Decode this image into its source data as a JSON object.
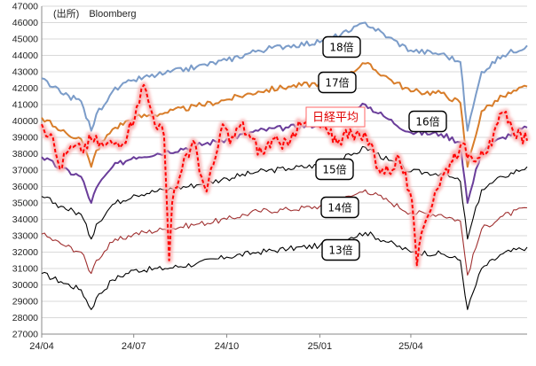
{
  "chart_data": {
    "type": "line",
    "source_note": "(出所)　Bloomberg",
    "xlim": [
      "2024-04-01",
      "2025-07-25"
    ],
    "ylim": [
      27000,
      47000
    ],
    "ytick_step": 1000,
    "y_ticks": [
      27000,
      28000,
      29000,
      30000,
      31000,
      32000,
      33000,
      34000,
      35000,
      36000,
      37000,
      38000,
      39000,
      40000,
      41000,
      42000,
      43000,
      44000,
      45000,
      46000,
      47000
    ],
    "x_ticks": [
      {
        "label": "24/04",
        "date": "2024-04-01"
      },
      {
        "label": "24/07",
        "date": "2024-07-01"
      },
      {
        "label": "24/10",
        "date": "2024-10-01"
      },
      {
        "label": "25/01",
        "date": "2025-01-01"
      },
      {
        "label": "25/04",
        "date": "2025-04-01"
      }
    ],
    "grid": "horizontal",
    "colors": {
      "line_13": "#000000",
      "line_14": "#a03030",
      "line_15": "#000000",
      "line_16": "#6a3d9a",
      "line_17": "#d87d2a",
      "line_18": "#7b9cc9",
      "nikkei": "#ff0000",
      "nikkei_glow": "#f8b8b8",
      "nikkei_label_border": "#ff6666"
    },
    "series": [
      {
        "id": "line_13",
        "name": "13倍",
        "dates": [
          "2024-04-01",
          "2024-04-20",
          "2024-05-10",
          "2024-05-20",
          "2024-05-25",
          "2024-06-10",
          "2024-07-01",
          "2024-08-01",
          "2024-09-01",
          "2024-10-01",
          "2024-11-01",
          "2024-12-01",
          "2025-01-01",
          "2025-02-01",
          "2025-02-15",
          "2025-03-10",
          "2025-04-01",
          "2025-05-01",
          "2025-05-20",
          "2025-05-27",
          "2025-06-10",
          "2025-07-01",
          "2025-07-25"
        ],
        "values": [
          30700,
          30200,
          29700,
          28500,
          29200,
          30300,
          30900,
          31000,
          31300,
          31700,
          32000,
          32200,
          32400,
          32900,
          33200,
          32600,
          32000,
          31900,
          31500,
          28500,
          31000,
          31900,
          32300
        ]
      },
      {
        "id": "line_14",
        "name": "14倍",
        "dates": [
          "2024-04-01",
          "2024-04-20",
          "2024-05-10",
          "2024-05-20",
          "2024-05-25",
          "2024-06-10",
          "2024-07-01",
          "2024-08-01",
          "2024-09-01",
          "2024-10-01",
          "2024-11-01",
          "2024-12-01",
          "2025-01-01",
          "2025-02-01",
          "2025-02-15",
          "2025-03-10",
          "2025-04-01",
          "2025-05-01",
          "2025-05-20",
          "2025-05-27",
          "2025-06-10",
          "2025-07-01",
          "2025-07-25"
        ],
        "values": [
          33100,
          32500,
          32000,
          30700,
          31500,
          32600,
          33100,
          33400,
          33700,
          34000,
          34500,
          34600,
          34800,
          35400,
          35800,
          35100,
          34400,
          34300,
          33900,
          30600,
          33400,
          34200,
          34700
        ]
      },
      {
        "id": "line_15",
        "name": "15倍",
        "dates": [
          "2024-04-01",
          "2024-04-20",
          "2024-05-10",
          "2024-05-20",
          "2024-05-25",
          "2024-06-10",
          "2024-07-01",
          "2024-08-01",
          "2024-09-01",
          "2024-10-01",
          "2024-11-01",
          "2024-12-01",
          "2025-01-01",
          "2025-02-01",
          "2025-02-15",
          "2025-03-10",
          "2025-04-01",
          "2025-05-01",
          "2025-05-20",
          "2025-05-27",
          "2025-06-10",
          "2025-07-01",
          "2025-07-25"
        ],
        "values": [
          35400,
          34800,
          34300,
          32800,
          33700,
          34900,
          35500,
          35800,
          36100,
          36500,
          36900,
          37100,
          37300,
          37900,
          38400,
          37600,
          36900,
          36800,
          36300,
          32800,
          35800,
          36600,
          37200
        ]
      },
      {
        "id": "line_16",
        "name": "16倍",
        "dates": [
          "2024-04-01",
          "2024-04-20",
          "2024-05-10",
          "2024-05-20",
          "2024-05-25",
          "2024-06-10",
          "2024-07-01",
          "2024-08-01",
          "2024-09-01",
          "2024-10-01",
          "2024-11-01",
          "2024-12-01",
          "2025-01-01",
          "2025-02-01",
          "2025-02-15",
          "2025-03-10",
          "2025-04-01",
          "2025-05-01",
          "2025-05-20",
          "2025-05-27",
          "2025-06-10",
          "2025-07-01",
          "2025-07-25"
        ],
        "values": [
          37800,
          37100,
          36600,
          35000,
          35900,
          37200,
          37800,
          38100,
          38500,
          38900,
          39400,
          39600,
          39800,
          40500,
          41000,
          40100,
          39300,
          39200,
          38700,
          35000,
          38200,
          39000,
          39600
        ]
      },
      {
        "id": "line_17",
        "name": "17倍",
        "dates": [
          "2024-04-01",
          "2024-04-20",
          "2024-05-10",
          "2024-05-20",
          "2024-05-25",
          "2024-06-10",
          "2024-07-01",
          "2024-08-01",
          "2024-09-01",
          "2024-10-01",
          "2024-11-01",
          "2024-12-01",
          "2025-01-01",
          "2025-02-01",
          "2025-02-15",
          "2025-03-10",
          "2025-04-01",
          "2025-05-01",
          "2025-05-20",
          "2025-05-27",
          "2025-06-10",
          "2025-07-01",
          "2025-07-25"
        ],
        "values": [
          40200,
          39400,
          38900,
          37200,
          38200,
          39500,
          40200,
          40500,
          40900,
          41300,
          41800,
          42100,
          42300,
          43000,
          43500,
          42600,
          41800,
          41700,
          41100,
          37200,
          40600,
          41500,
          42100
        ]
      },
      {
        "id": "line_18",
        "name": "18倍",
        "dates": [
          "2024-04-01",
          "2024-04-20",
          "2024-05-10",
          "2024-05-20",
          "2024-05-25",
          "2024-06-10",
          "2024-07-01",
          "2024-08-01",
          "2024-09-01",
          "2024-10-01",
          "2024-11-01",
          "2024-12-01",
          "2025-01-01",
          "2025-02-01",
          "2025-02-15",
          "2025-03-10",
          "2025-04-01",
          "2025-05-01",
          "2025-05-20",
          "2025-05-27",
          "2025-06-10",
          "2025-07-01",
          "2025-07-25"
        ],
        "values": [
          42600,
          41700,
          41200,
          39400,
          40400,
          41800,
          42500,
          42900,
          43300,
          43700,
          44300,
          44600,
          44800,
          45500,
          46000,
          45100,
          44300,
          44100,
          43600,
          39400,
          43000,
          44000,
          44600
        ]
      },
      {
        "id": "nikkei",
        "name": "日経平均",
        "dates": [
          "2024-04-01",
          "2024-04-10",
          "2024-04-19",
          "2024-04-25",
          "2024-05-02",
          "2024-05-10",
          "2024-05-20",
          "2024-06-01",
          "2024-06-15",
          "2024-06-25",
          "2024-07-04",
          "2024-07-11",
          "2024-07-20",
          "2024-07-31",
          "2024-08-05",
          "2024-08-08",
          "2024-08-15",
          "2024-08-20",
          "2024-08-31",
          "2024-09-06",
          "2024-09-11",
          "2024-09-20",
          "2024-09-27",
          "2024-10-04",
          "2024-10-15",
          "2024-10-25",
          "2024-11-05",
          "2024-11-15",
          "2024-11-25",
          "2024-12-05",
          "2024-12-15",
          "2024-12-27",
          "2025-01-10",
          "2025-01-20",
          "2025-01-31",
          "2025-02-10",
          "2025-02-20",
          "2025-02-28",
          "2025-03-10",
          "2025-03-20",
          "2025-03-31",
          "2025-04-04",
          "2025-04-07",
          "2025-04-14",
          "2025-04-25",
          "2025-05-10",
          "2025-05-20",
          "2025-05-31",
          "2025-06-10",
          "2025-06-20",
          "2025-06-30",
          "2025-07-10",
          "2025-07-25"
        ],
        "values": [
          39800,
          39200,
          37100,
          38000,
          38400,
          38200,
          38900,
          38500,
          38700,
          39200,
          40900,
          42200,
          40300,
          39100,
          31500,
          35000,
          36500,
          37800,
          38600,
          36600,
          35700,
          37800,
          39800,
          38600,
          39800,
          38900,
          38000,
          38900,
          38300,
          39300,
          39800,
          39900,
          39200,
          38800,
          39500,
          39000,
          38700,
          37100,
          36900,
          37800,
          35700,
          33800,
          31200,
          33600,
          35700,
          37500,
          38500,
          37800,
          38200,
          38500,
          40500,
          39600,
          38800
        ]
      }
    ],
    "annotations": [
      {
        "text": "18倍",
        "target": "line_18"
      },
      {
        "text": "17倍",
        "target": "line_17"
      },
      {
        "text": "16倍",
        "target": "line_16"
      },
      {
        "text": "15倍",
        "target": "line_15"
      },
      {
        "text": "14倍",
        "target": "line_14"
      },
      {
        "text": "13倍",
        "target": "line_13"
      },
      {
        "text": "日経平均",
        "target": "nikkei"
      }
    ]
  }
}
